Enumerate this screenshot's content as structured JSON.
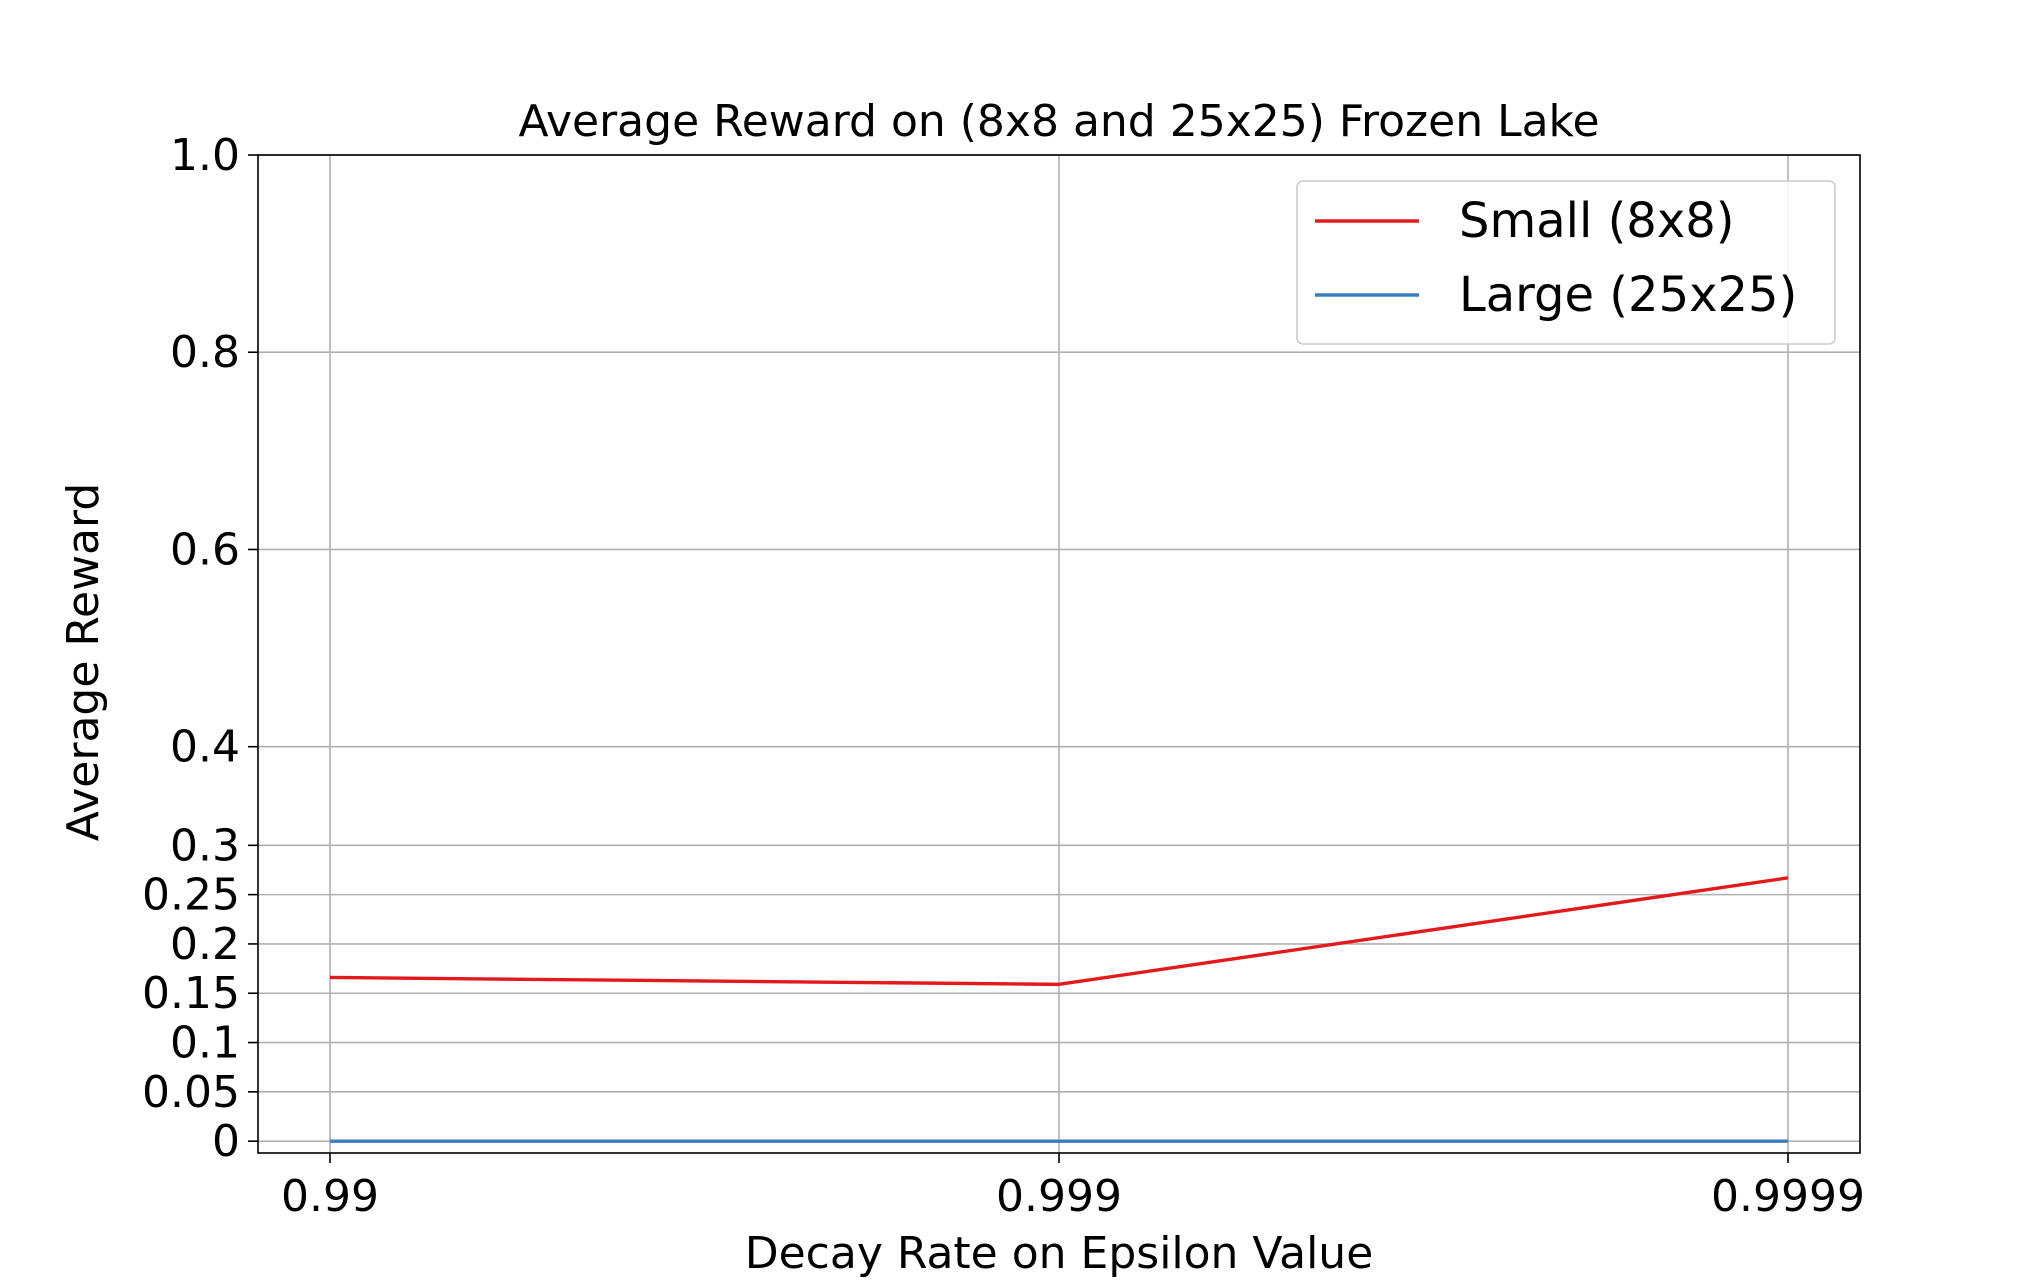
{
  "chart_data": {
    "type": "line",
    "title": "Average Reward on (8x8 and 25x25) Frozen Lake",
    "xlabel": "Decay Rate on Epsilon Value",
    "ylabel": "Average Reward",
    "categories": [
      "0.99",
      "0.999",
      "0.9999"
    ],
    "ylim": [
      -0.012,
      1.0
    ],
    "yticks": [
      0,
      0.05,
      0.1,
      0.15,
      0.2,
      0.25,
      0.3,
      0.4,
      0.6,
      0.8,
      1.0
    ],
    "ytick_labels": [
      "0",
      "0.05",
      "0.1",
      "0.15",
      "0.2",
      "0.25",
      "0.3",
      "0.4",
      "0.6",
      "0.8",
      "1.0"
    ],
    "grid": true,
    "legend_position": "top-right",
    "series": [
      {
        "name": "Small (8x8)",
        "values": [
          0.166,
          0.159,
          0.267
        ],
        "color": "#e31a1c"
      },
      {
        "name": "Large (25x25)",
        "values": [
          0.0,
          0.0,
          0.0
        ],
        "color": "#3a7dbf"
      }
    ]
  }
}
